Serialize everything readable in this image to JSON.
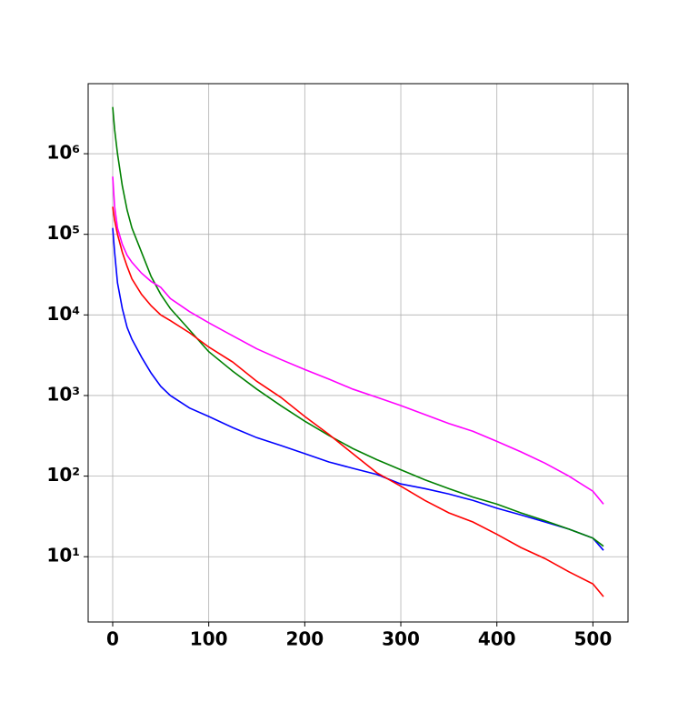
{
  "chart_data": {
    "type": "line",
    "log_y": true,
    "grid": true,
    "x": [
      0,
      2,
      5,
      10,
      15,
      20,
      30,
      40,
      50,
      60,
      80,
      100,
      125,
      150,
      175,
      200,
      225,
      250,
      275,
      300,
      325,
      350,
      375,
      400,
      425,
      450,
      475,
      500,
      511
    ],
    "xlim": [
      -25.55,
      536.55
    ],
    "xticks": [
      0,
      100,
      200,
      300,
      400,
      500
    ],
    "ylim": [
      1.55,
      7400000
    ],
    "yticks": [
      {
        "value": 10,
        "label": "10¹"
      },
      {
        "value": 100,
        "label": "10²"
      },
      {
        "value": 1000,
        "label": "10³"
      },
      {
        "value": 10000,
        "label": "10⁴"
      },
      {
        "value": 100000,
        "label": "10⁵"
      },
      {
        "value": 1000000,
        "label": "10⁶"
      }
    ],
    "series": [
      {
        "color": "#0000ff",
        "values": [
          120000,
          60000,
          25000,
          12000,
          7000,
          5000,
          3000,
          1900,
          1300,
          1000,
          700,
          550,
          400,
          300,
          240,
          190,
          150,
          125,
          105,
          80,
          70,
          60,
          50,
          40,
          33,
          27,
          22,
          17,
          12
        ]
      },
      {
        "color": "#008000",
        "values": [
          3800000,
          2000000,
          1000000,
          400000,
          200000,
          120000,
          60000,
          30000,
          18000,
          12000,
          6500,
          3500,
          2000,
          1200,
          750,
          480,
          320,
          220,
          160,
          120,
          90,
          70,
          55,
          45,
          35,
          28,
          22,
          17,
          13.5
        ]
      },
      {
        "color": "#ff0000",
        "values": [
          220000,
          150000,
          100000,
          60000,
          40000,
          28000,
          18000,
          13000,
          10000,
          8500,
          6000,
          4000,
          2600,
          1500,
          950,
          550,
          330,
          190,
          110,
          75,
          50,
          35,
          27,
          19,
          13,
          9.5,
          6.5,
          4.6,
          3.2
        ]
      },
      {
        "color": "#ff00ff",
        "values": [
          520000,
          220000,
          120000,
          75000,
          55000,
          45000,
          33000,
          26000,
          22000,
          16000,
          11000,
          8000,
          5500,
          3800,
          2800,
          2100,
          1600,
          1200,
          950,
          750,
          580,
          450,
          360,
          270,
          200,
          145,
          100,
          65,
          45
        ]
      }
    ]
  }
}
